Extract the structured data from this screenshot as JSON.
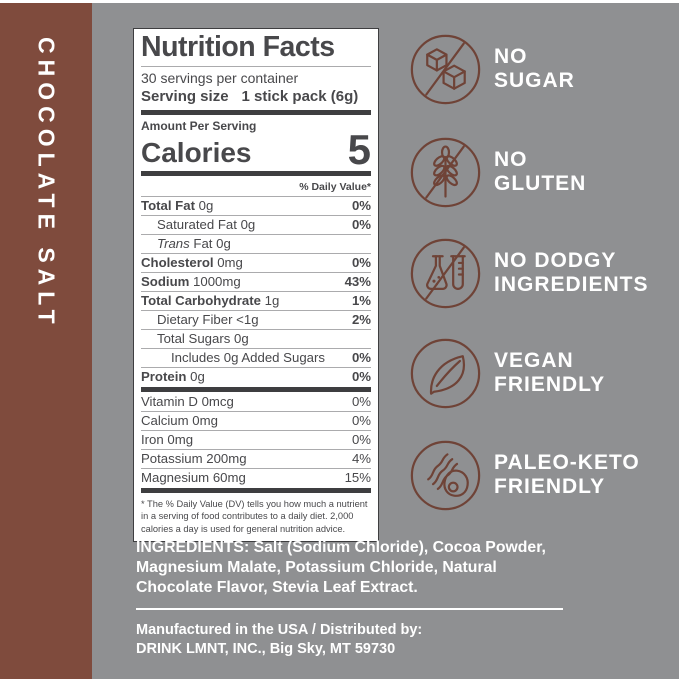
{
  "colors": {
    "background": "#8F9092",
    "sidebar": "#7F4B3D",
    "icon-stroke": "#6F4337",
    "label-ink": "#48484B",
    "bar": "#3E3E40",
    "hairline": "#ABABAD"
  },
  "sidebar": {
    "title": "CHOCOLATE SALT"
  },
  "label": {
    "title": "Nutrition Facts",
    "servings": "30 servings per container",
    "serving_size_label": "Serving size",
    "serving_size_value": "1 stick pack (6g)",
    "amount_per_serving": "Amount Per Serving",
    "calories_label": "Calories",
    "calories_value": "5",
    "dv_header": "% Daily Value*",
    "rows": [
      {
        "name": "Total Fat",
        "rest": "0g",
        "dv": "0%",
        "bold": true,
        "indent": 0
      },
      {
        "name": "Saturated Fat",
        "rest": "0g",
        "dv": "0%",
        "indent": 1
      },
      {
        "name": "Trans",
        "rest": "Fat 0g",
        "dv": "",
        "italic": true,
        "indent": 1
      },
      {
        "name": "Cholesterol",
        "rest": "0mg",
        "dv": "0%",
        "bold": true,
        "indent": 0
      },
      {
        "name": "Sodium",
        "rest": "1000mg",
        "dv": "43%",
        "bold": true,
        "indent": 0
      },
      {
        "name": "Total Carbohydrate",
        "rest": "1g",
        "dv": "1%",
        "bold": true,
        "indent": 0
      },
      {
        "name": "Dietary Fiber",
        "rest": "<1g",
        "dv": "2%",
        "indent": 1
      },
      {
        "name": "Total Sugars",
        "rest": "0g",
        "dv": "",
        "indent": 1
      },
      {
        "name": "",
        "rest": "Includes 0g Added Sugars",
        "dv": "0%",
        "indent": 2
      },
      {
        "name": "Protein",
        "rest": "0g",
        "dv": "0%",
        "bold": true,
        "indent": 0
      }
    ],
    "micro_rows": [
      {
        "name": "",
        "rest": "Vitamin D 0mcg",
        "dv": "0%"
      },
      {
        "name": "",
        "rest": "Calcium 0mg",
        "dv": "0%"
      },
      {
        "name": "",
        "rest": "Iron 0mg",
        "dv": "0%"
      },
      {
        "name": "",
        "rest": "Potassium 200mg",
        "dv": "4%"
      },
      {
        "name": "",
        "rest": "Magnesium 60mg",
        "dv": "15%"
      }
    ],
    "footnote": "* The % Daily Value (DV) tells you how much a nutrient in a serving of food contributes to a daily diet. 2,000 calories a day is used for general nutrition advice."
  },
  "badges": [
    {
      "line1": "NO",
      "line2": "SUGAR",
      "icon": "sugar-cubes-crossed"
    },
    {
      "line1": "NO",
      "line2": "GLUTEN",
      "icon": "wheat-crossed"
    },
    {
      "line1": "NO DODGY",
      "line2": "INGREDIENTS",
      "icon": "lab-glassware-crossed"
    },
    {
      "line1": "VEGAN",
      "line2": "FRIENDLY",
      "icon": "leaf"
    },
    {
      "line1": "PALEO-KETO",
      "line2": "FRIENDLY",
      "icon": "bacon-and-egg"
    }
  ],
  "footer": {
    "ingredients_label": "INGREDIENTS:",
    "ingredients_text": " Salt (Sodium Chloride), Cocoa Powder, Magnesium Malate, Potassium Chloride,  Natural Chocolate Flavor, Stevia Leaf Extract.",
    "made_line1": "Manufactured in the USA / Distributed by:",
    "made_line2": "DRINK LMNT, INC., Big Sky, MT 59730"
  }
}
